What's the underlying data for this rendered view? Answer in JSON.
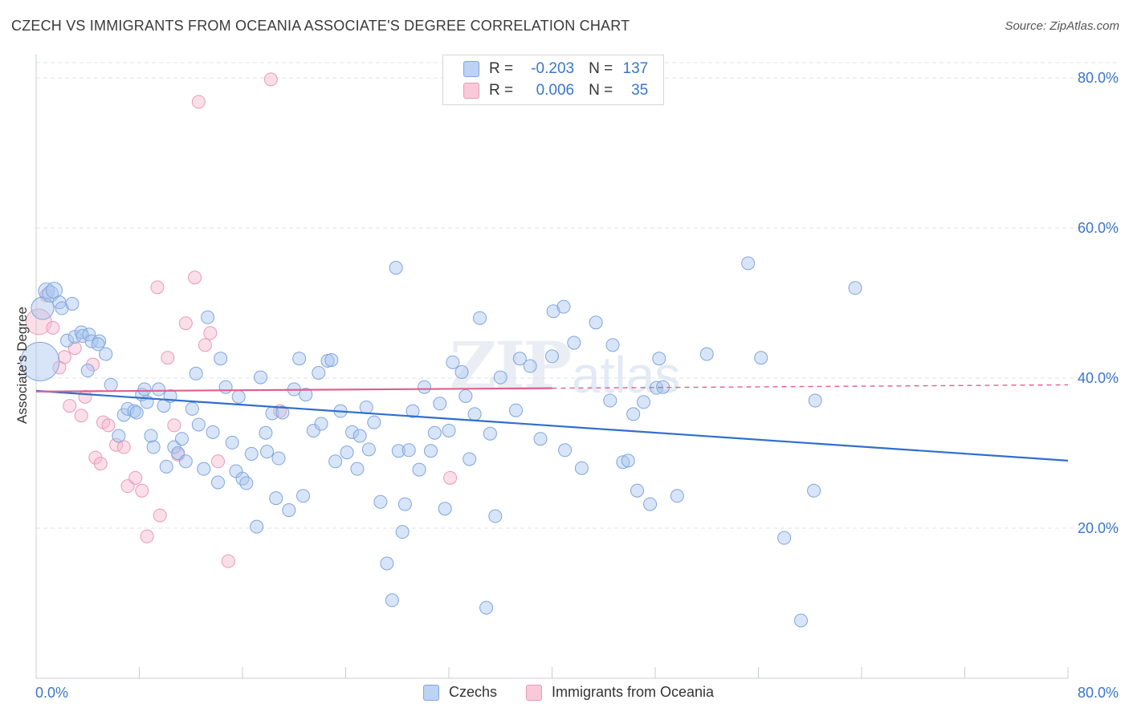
{
  "title": "CZECH VS IMMIGRANTS FROM OCEANIA ASSOCIATE'S DEGREE CORRELATION CHART",
  "source": "Source: ZipAtlas.com",
  "watermark": {
    "zip": "ZIP",
    "atlas": "atlas"
  },
  "legend": {
    "rows": [
      {
        "r_label": "R =",
        "r_value": "-0.203",
        "n_label": "N =",
        "n_value": "137",
        "color": "#a9c6ef"
      },
      {
        "r_label": "R =",
        "r_value": "0.006",
        "n_label": "N =",
        "n_value": "35",
        "color": "#f6b8cc"
      }
    ]
  },
  "colors": {
    "blue_fill": "rgba(169,198,239,0.45)",
    "blue_stroke": "#7fa6dc",
    "blue_line": "#2f6fcc",
    "pink_fill": "rgba(246,184,204,0.45)",
    "pink_stroke": "#e99ab3",
    "pink_line": "#e0608a",
    "axis_text": "#3a76c9",
    "grid": "#dde3ea"
  },
  "chart_data": {
    "type": "scatter",
    "title": "CZECH VS IMMIGRANTS FROM OCEANIA ASSOCIATE'S DEGREE CORRELATION CHART",
    "xlabel": "",
    "ylabel": "Associate's Degree",
    "xlim": [
      0,
      80
    ],
    "ylim": [
      0,
      82
    ],
    "x_tick_labels": [
      "0.0%",
      "80.0%"
    ],
    "y_ticks": [
      20,
      40,
      60,
      80
    ],
    "y_tick_labels": [
      "20.0%",
      "40.0%",
      "60.0%",
      "80.0%"
    ],
    "grid": true,
    "legend_position": "bottom",
    "series": [
      {
        "name": "Czechs",
        "r": -0.203,
        "n": 137,
        "trend": {
          "x": [
            0,
            80
          ],
          "y": [
            38.3,
            29.0
          ],
          "solid_to": 80
        },
        "points": [
          [
            0.3,
            42.2,
            24
          ],
          [
            0.5,
            49.3,
            14
          ],
          [
            0.8,
            51.6,
            10
          ],
          [
            1.1,
            51.2,
            10
          ],
          [
            1.4,
            51.7,
            10
          ],
          [
            1.8,
            50.1,
            8
          ],
          [
            2.0,
            49.3,
            8
          ],
          [
            2.8,
            49.9,
            8
          ],
          [
            2.4,
            45.0,
            8
          ],
          [
            3.0,
            45.5,
            8
          ],
          [
            3.5,
            46.1,
            8
          ],
          [
            3.6,
            45.6,
            8
          ],
          [
            4.1,
            45.8,
            8
          ],
          [
            4.3,
            44.9,
            8
          ],
          [
            4.9,
            44.9,
            8
          ],
          [
            4.8,
            44.5,
            8
          ],
          [
            5.4,
            43.2,
            8
          ],
          [
            4.0,
            41.0,
            8
          ],
          [
            5.8,
            39.1,
            8
          ],
          [
            6.4,
            32.3,
            8
          ],
          [
            6.8,
            35.1,
            8
          ],
          [
            7.1,
            35.9,
            8
          ],
          [
            7.6,
            35.6,
            8
          ],
          [
            7.8,
            35.4,
            8
          ],
          [
            8.2,
            37.8,
            8
          ],
          [
            8.4,
            38.5,
            8
          ],
          [
            8.6,
            36.8,
            8
          ],
          [
            8.9,
            32.3,
            8
          ],
          [
            9.1,
            30.8,
            8
          ],
          [
            9.5,
            38.5,
            8
          ],
          [
            9.9,
            36.3,
            8
          ],
          [
            10.1,
            28.2,
            8
          ],
          [
            10.4,
            37.6,
            8
          ],
          [
            10.7,
            30.8,
            8
          ],
          [
            11.0,
            30.0,
            8
          ],
          [
            11.3,
            31.9,
            8
          ],
          [
            11.6,
            28.9,
            8
          ],
          [
            12.1,
            35.9,
            8
          ],
          [
            12.4,
            40.6,
            8
          ],
          [
            12.6,
            33.8,
            8
          ],
          [
            13.0,
            27.9,
            8
          ],
          [
            13.3,
            48.1,
            8
          ],
          [
            13.7,
            32.8,
            8
          ],
          [
            14.1,
            26.1,
            8
          ],
          [
            14.3,
            42.6,
            8
          ],
          [
            14.7,
            38.8,
            8
          ],
          [
            15.2,
            31.4,
            8
          ],
          [
            15.5,
            27.6,
            8
          ],
          [
            15.7,
            37.5,
            8
          ],
          [
            16.0,
            26.6,
            8
          ],
          [
            16.3,
            26.0,
            8
          ],
          [
            16.7,
            29.9,
            8
          ],
          [
            17.1,
            20.2,
            8
          ],
          [
            17.4,
            40.1,
            8
          ],
          [
            17.8,
            32.7,
            8
          ],
          [
            17.9,
            30.2,
            8
          ],
          [
            18.3,
            35.3,
            8
          ],
          [
            18.6,
            24.0,
            8
          ],
          [
            18.8,
            29.3,
            8
          ],
          [
            19.1,
            35.4,
            8
          ],
          [
            19.6,
            22.4,
            8
          ],
          [
            20.0,
            38.5,
            8
          ],
          [
            20.4,
            42.6,
            8
          ],
          [
            20.7,
            24.3,
            8
          ],
          [
            20.9,
            37.8,
            8
          ],
          [
            21.5,
            33.0,
            8
          ],
          [
            21.9,
            40.7,
            8
          ],
          [
            22.1,
            33.9,
            8
          ],
          [
            22.6,
            42.3,
            8
          ],
          [
            22.9,
            42.4,
            8
          ],
          [
            23.2,
            28.9,
            8
          ],
          [
            23.6,
            35.6,
            8
          ],
          [
            24.1,
            30.1,
            8
          ],
          [
            24.5,
            32.8,
            8
          ],
          [
            24.9,
            27.9,
            8
          ],
          [
            25.1,
            32.3,
            8
          ],
          [
            25.6,
            36.1,
            8
          ],
          [
            25.8,
            30.5,
            8
          ],
          [
            26.2,
            34.1,
            8
          ],
          [
            26.7,
            23.5,
            8
          ],
          [
            27.2,
            15.3,
            8
          ],
          [
            27.6,
            10.4,
            8
          ],
          [
            27.9,
            54.7,
            8
          ],
          [
            28.1,
            30.3,
            8
          ],
          [
            28.4,
            19.5,
            8
          ],
          [
            28.6,
            23.2,
            8
          ],
          [
            28.9,
            30.4,
            8
          ],
          [
            29.2,
            35.6,
            8
          ],
          [
            29.7,
            27.8,
            8
          ],
          [
            30.1,
            38.8,
            8
          ],
          [
            30.6,
            30.3,
            8
          ],
          [
            30.9,
            32.7,
            8
          ],
          [
            31.3,
            36.6,
            8
          ],
          [
            31.7,
            22.6,
            8
          ],
          [
            32.0,
            33.0,
            8
          ],
          [
            32.3,
            42.1,
            8
          ],
          [
            33.0,
            40.8,
            8
          ],
          [
            33.3,
            37.6,
            8
          ],
          [
            33.6,
            29.2,
            8
          ],
          [
            34.0,
            35.2,
            8
          ],
          [
            34.4,
            48.0,
            8
          ],
          [
            34.9,
            9.4,
            8
          ],
          [
            35.2,
            32.6,
            8
          ],
          [
            35.6,
            21.6,
            8
          ],
          [
            36.0,
            40.1,
            8
          ],
          [
            37.2,
            35.7,
            8
          ],
          [
            37.5,
            42.6,
            8
          ],
          [
            38.3,
            41.6,
            8
          ],
          [
            39.1,
            31.9,
            8
          ],
          [
            40.0,
            42.9,
            8
          ],
          [
            40.1,
            48.9,
            8
          ],
          [
            40.9,
            49.5,
            8
          ],
          [
            41.0,
            30.4,
            8
          ],
          [
            41.7,
            44.7,
            8
          ],
          [
            42.3,
            28.0,
            8
          ],
          [
            43.4,
            47.4,
            8
          ],
          [
            44.5,
            37.0,
            8
          ],
          [
            44.7,
            44.4,
            8
          ],
          [
            45.5,
            28.8,
            8
          ],
          [
            45.9,
            29.0,
            8
          ],
          [
            46.3,
            35.2,
            8
          ],
          [
            46.6,
            25.0,
            8
          ],
          [
            47.1,
            36.8,
            8
          ],
          [
            47.6,
            23.2,
            8
          ],
          [
            48.1,
            38.7,
            8
          ],
          [
            48.3,
            42.6,
            8
          ],
          [
            48.6,
            38.8,
            8
          ],
          [
            49.7,
            24.3,
            8
          ],
          [
            52.0,
            43.2,
            8
          ],
          [
            55.2,
            55.3,
            8
          ],
          [
            56.2,
            42.7,
            8
          ],
          [
            58.0,
            18.7,
            8
          ],
          [
            59.3,
            7.7,
            8
          ],
          [
            60.3,
            25.0,
            8
          ],
          [
            60.4,
            37.0,
            8
          ],
          [
            63.5,
            52.0,
            8
          ]
        ]
      },
      {
        "name": "Immigrants from Oceania",
        "r": 0.006,
        "n": 35,
        "trend": {
          "x": [
            0,
            80
          ],
          "y": [
            38.2,
            39.1
          ],
          "solid_to": 40
        },
        "points": [
          [
            0.2,
            47.5,
            16
          ],
          [
            0.8,
            51.0,
            8
          ],
          [
            1.3,
            46.7,
            8
          ],
          [
            1.8,
            41.4,
            8
          ],
          [
            2.2,
            42.8,
            8
          ],
          [
            2.6,
            36.3,
            8
          ],
          [
            3.0,
            44.0,
            8
          ],
          [
            3.5,
            35.0,
            8
          ],
          [
            3.8,
            37.5,
            8
          ],
          [
            4.4,
            41.8,
            8
          ],
          [
            4.6,
            29.4,
            8
          ],
          [
            5.0,
            28.6,
            8
          ],
          [
            5.2,
            34.1,
            8
          ],
          [
            5.6,
            33.7,
            8
          ],
          [
            6.2,
            31.1,
            8
          ],
          [
            6.8,
            30.8,
            8
          ],
          [
            7.1,
            25.6,
            8
          ],
          [
            7.7,
            26.7,
            8
          ],
          [
            8.2,
            25.0,
            8
          ],
          [
            8.6,
            18.9,
            8
          ],
          [
            9.4,
            52.1,
            8
          ],
          [
            9.6,
            21.7,
            8
          ],
          [
            10.2,
            42.7,
            8
          ],
          [
            10.7,
            33.7,
            8
          ],
          [
            11.0,
            29.8,
            8
          ],
          [
            11.6,
            47.3,
            8
          ],
          [
            12.3,
            53.4,
            8
          ],
          [
            12.6,
            76.8,
            8
          ],
          [
            13.1,
            44.4,
            8
          ],
          [
            13.5,
            46.0,
            8
          ],
          [
            14.1,
            28.9,
            8
          ],
          [
            14.9,
            15.6,
            8
          ],
          [
            18.2,
            79.8,
            8
          ],
          [
            18.9,
            35.6,
            8
          ],
          [
            32.1,
            26.7,
            8
          ]
        ]
      }
    ]
  }
}
